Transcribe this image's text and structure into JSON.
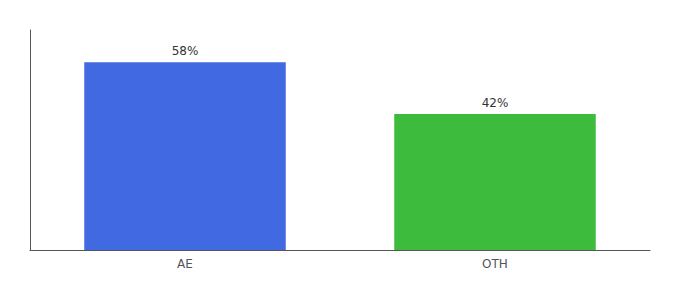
{
  "chart_data": {
    "type": "bar",
    "categories": [
      "AE",
      "OTH"
    ],
    "values": [
      58,
      42
    ],
    "value_labels": [
      "58%",
      "42%"
    ],
    "colors": [
      "#4169e1",
      "#3dbb3d"
    ],
    "ylim": [
      0,
      68
    ],
    "grid": false,
    "data_labels": true,
    "tick_labels": "x"
  }
}
